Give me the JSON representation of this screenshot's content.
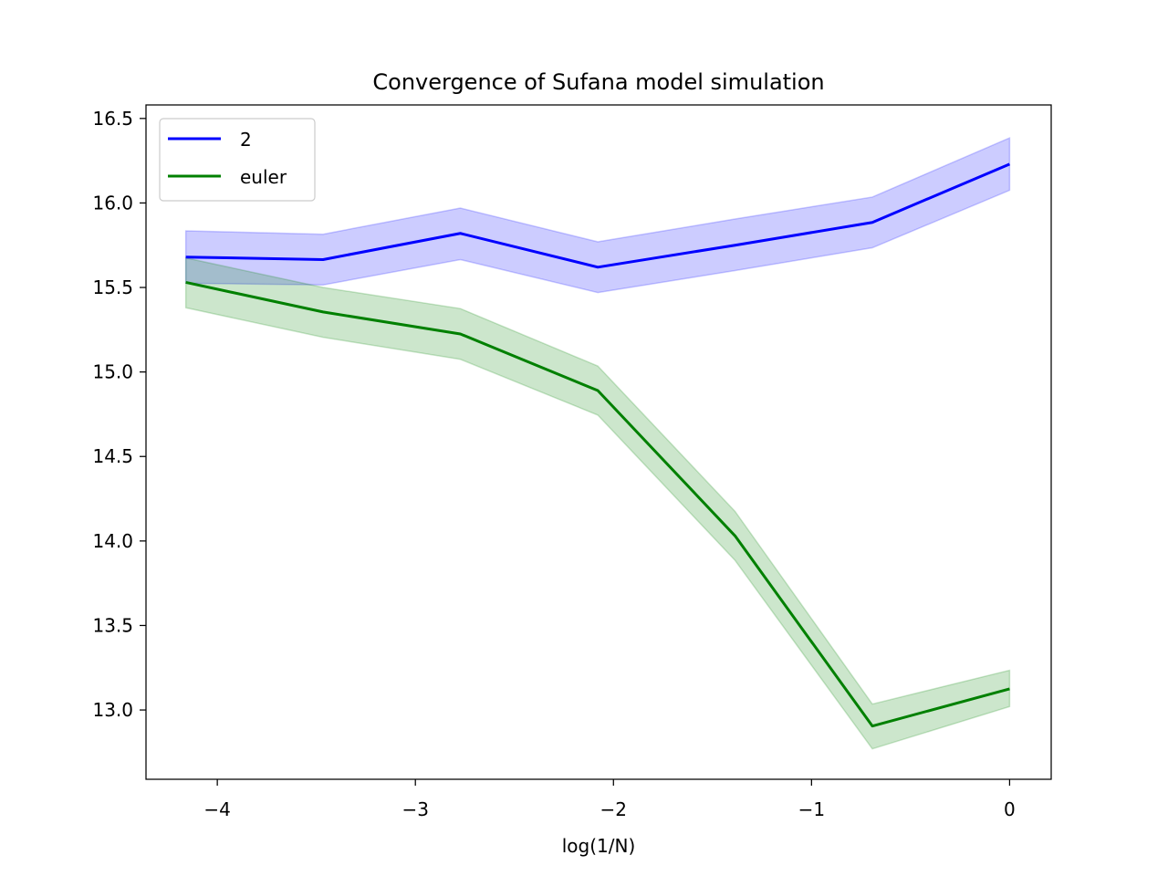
{
  "chart_data": {
    "type": "line",
    "title": "Convergence of Sufana model simulation",
    "xlabel": "log(1/N)",
    "ylabel": "",
    "xlim": [
      -4.36,
      0.21
    ],
    "ylim": [
      12.59,
      16.58
    ],
    "grid": false,
    "legend_position": "top-left",
    "x": [
      -4.159,
      -3.466,
      -2.773,
      -2.079,
      -1.386,
      -0.693,
      0.0
    ],
    "xticks": [
      -4,
      -3,
      -2,
      -1,
      0
    ],
    "xtick_labels": [
      "−4",
      "−3",
      "−2",
      "−1",
      "0"
    ],
    "yticks": [
      13.0,
      13.5,
      14.0,
      14.5,
      15.0,
      15.5,
      16.0,
      16.5
    ],
    "ytick_labels": [
      "13.0",
      "13.5",
      "14.0",
      "14.5",
      "15.0",
      "15.5",
      "16.0",
      "16.5"
    ],
    "series": [
      {
        "name": "2",
        "color": "#0000ff",
        "fill_color": "#0000ff",
        "values": [
          15.68,
          15.665,
          15.82,
          15.62,
          15.75,
          15.885,
          16.23
        ],
        "lower": [
          15.525,
          15.515,
          15.665,
          15.47,
          15.6,
          15.735,
          16.075
        ],
        "upper": [
          15.835,
          15.815,
          15.97,
          15.77,
          15.905,
          16.035,
          16.385
        ]
      },
      {
        "name": "euler",
        "color": "#008000",
        "fill_color": "#008000",
        "values": [
          15.53,
          15.355,
          15.225,
          14.89,
          14.03,
          12.905,
          13.125
        ],
        "lower": [
          15.38,
          15.205,
          15.075,
          14.745,
          13.885,
          12.77,
          13.02
        ],
        "upper": [
          15.675,
          15.5,
          15.375,
          15.035,
          14.175,
          13.035,
          13.235
        ]
      }
    ]
  }
}
